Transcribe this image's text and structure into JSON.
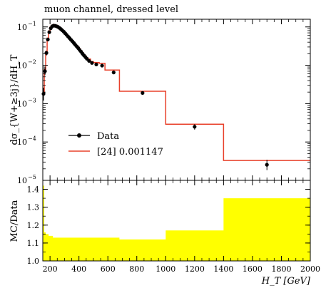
{
  "chart_data": [
    {
      "type": "line",
      "title": "muon channel, dressed level",
      "ylabel": "dσ_{W+≥3j}/dH_T",
      "yscale": "log",
      "xlim": [
        150,
        2000
      ],
      "ylim_exp": [
        -5,
        -0.8
      ],
      "yticks": [
        {
          "exp": -1,
          "base": "10",
          "sup": "−1"
        },
        {
          "exp": -2,
          "base": "10",
          "sup": "−2"
        },
        {
          "exp": -3,
          "base": "10",
          "sup": "−3"
        },
        {
          "exp": -4,
          "base": "10",
          "sup": "−4"
        },
        {
          "exp": -5,
          "base": "10",
          "sup": "−5"
        }
      ],
      "legend": [
        "Data",
        "[24] 0.001147"
      ],
      "legend_position": "lower-left",
      "series": [
        {
          "name": "Data",
          "style": "points",
          "color": "#000000",
          "x": [
            155,
            165,
            175,
            185,
            195,
            205,
            215,
            225,
            235,
            245,
            255,
            265,
            275,
            285,
            295,
            305,
            315,
            325,
            335,
            345,
            355,
            365,
            375,
            385,
            395,
            405,
            415,
            425,
            435,
            445,
            455,
            470,
            490,
            520,
            560,
            640,
            840,
            1200,
            1700
          ],
          "y": [
            0.0018,
            0.007,
            0.021,
            0.047,
            0.073,
            0.092,
            0.104,
            0.108,
            0.107,
            0.104,
            0.1,
            0.094,
            0.088,
            0.081,
            0.075,
            0.068,
            0.062,
            0.056,
            0.051,
            0.046,
            0.042,
            0.038,
            0.034,
            0.031,
            0.028,
            0.025,
            0.0225,
            0.02,
            0.018,
            0.0163,
            0.0148,
            0.013,
            0.0115,
            0.0105,
            0.0098,
            0.0065,
            0.0019,
            0.00025,
            2.55e-05
          ],
          "yerr_lo": [
            0.0006,
            0.0015,
            0.003,
            0.005,
            0.005,
            0.005,
            0.005,
            0.005,
            0.005,
            0.005,
            0.005,
            0.005,
            0.004,
            0.004,
            0.004,
            0.003,
            0.003,
            0.003,
            0.003,
            0.002,
            0.002,
            0.002,
            0.002,
            0.002,
            0.0015,
            0.0015,
            0.0012,
            0.001,
            0.001,
            0.001,
            0.001,
            0.0008,
            0.0007,
            0.0006,
            0.0006,
            0.0004,
            0.00012,
            4e-05,
            7e-06
          ],
          "yerr_hi": [
            0.0008,
            0.0018,
            0.003,
            0.005,
            0.005,
            0.005,
            0.005,
            0.005,
            0.005,
            0.005,
            0.005,
            0.005,
            0.004,
            0.004,
            0.004,
            0.003,
            0.003,
            0.003,
            0.003,
            0.002,
            0.002,
            0.002,
            0.002,
            0.002,
            0.0015,
            0.0015,
            0.0012,
            0.001,
            0.001,
            0.001,
            0.001,
            0.0008,
            0.0007,
            0.0006,
            0.0006,
            0.0004,
            0.00012,
            4e-05,
            9e-06
          ]
        },
        {
          "name": "[24] 0.001147",
          "style": "step",
          "color": "#e8402a",
          "edges": [
            150,
            160,
            170,
            180,
            190,
            200,
            210,
            220,
            230,
            240,
            250,
            260,
            270,
            280,
            290,
            300,
            310,
            320,
            330,
            340,
            350,
            360,
            370,
            380,
            390,
            400,
            410,
            420,
            430,
            440,
            450,
            460,
            480,
            500,
            540,
            580,
            600,
            680,
            1000,
            1400,
            2000
          ],
          "values": [
            0.002,
            0.0078,
            0.023,
            0.051,
            0.079,
            0.099,
            0.111,
            0.115,
            0.114,
            0.11,
            0.105,
            0.099,
            0.092,
            0.085,
            0.078,
            0.071,
            0.064,
            0.058,
            0.053,
            0.048,
            0.044,
            0.04,
            0.036,
            0.033,
            0.03,
            0.027,
            0.024,
            0.0215,
            0.0193,
            0.0175,
            0.0159,
            0.0145,
            0.0125,
            0.0118,
            0.0112,
            0.0075,
            0.0075,
            0.0021,
            0.00029,
            3.3e-05
          ]
        }
      ]
    },
    {
      "type": "area",
      "ylabel": "MC/Data",
      "xlabel": "H_T [GeV]",
      "xlim": [
        150,
        2000
      ],
      "ylim": [
        1.0,
        1.45
      ],
      "xticks": [
        200,
        400,
        600,
        800,
        1000,
        1200,
        1400,
        1600,
        1800,
        2000
      ],
      "yticks": [
        1.0,
        1.1,
        1.2,
        1.3,
        1.4
      ],
      "series": [
        {
          "name": "[24] 0.001147",
          "color": "#ffff00",
          "edges": [
            150,
            160,
            170,
            180,
            190,
            200,
            210,
            220,
            230,
            240,
            250,
            260,
            280,
            300,
            320,
            340,
            360,
            380,
            400,
            420,
            440,
            460,
            480,
            500,
            540,
            580,
            600,
            680,
            1000,
            1400,
            2000
          ],
          "values": [
            1.42,
            1.16,
            1.15,
            1.15,
            1.14,
            1.14,
            1.14,
            1.13,
            1.13,
            1.13,
            1.13,
            1.13,
            1.13,
            1.13,
            1.13,
            1.13,
            1.13,
            1.13,
            1.13,
            1.13,
            1.13,
            1.13,
            1.13,
            1.13,
            1.13,
            1.13,
            1.13,
            1.12,
            1.17,
            1.35
          ]
        }
      ]
    }
  ]
}
